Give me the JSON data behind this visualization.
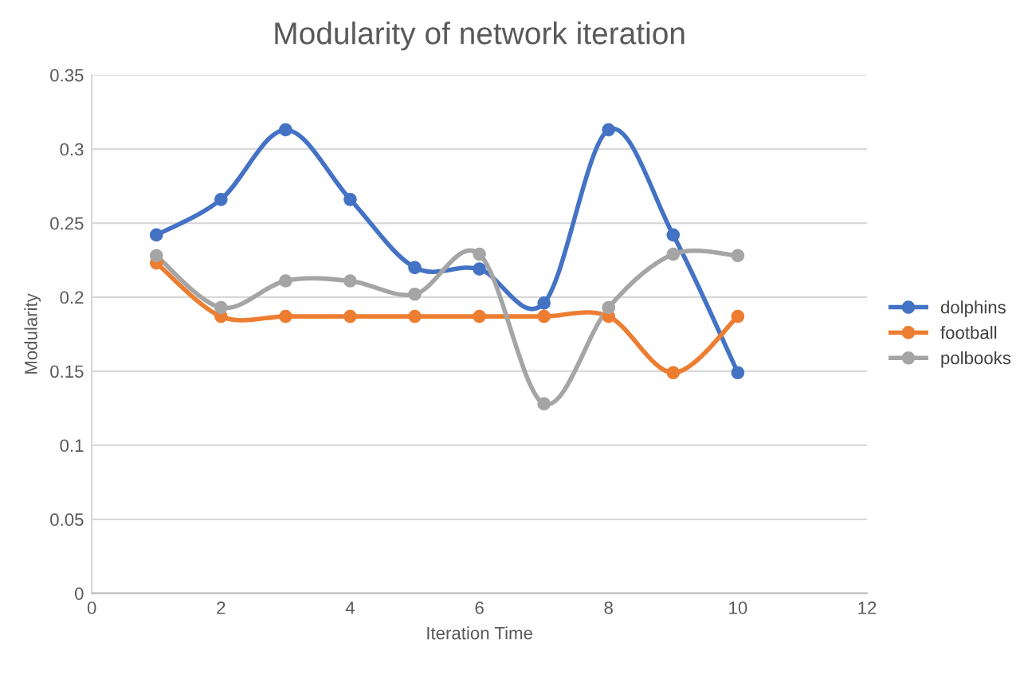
{
  "chart_data": {
    "type": "line",
    "title": "Modularity of network iteration",
    "xlabel": "Iteration Time",
    "ylabel": "Modularity",
    "x": [
      1,
      2,
      3,
      4,
      5,
      6,
      7,
      8,
      9,
      10
    ],
    "series": [
      {
        "name": "dolphins",
        "color": "#4472c4",
        "values": [
          0.242,
          0.266,
          0.313,
          0.266,
          0.22,
          0.219,
          0.196,
          0.313,
          0.242,
          0.149
        ]
      },
      {
        "name": "football",
        "color": "#ed7d31",
        "values": [
          0.223,
          0.187,
          0.187,
          0.187,
          0.187,
          0.187,
          0.187,
          0.187,
          0.149,
          0.187
        ]
      },
      {
        "name": "polbooks",
        "color": "#a5a5a5",
        "values": [
          0.228,
          0.193,
          0.211,
          0.211,
          0.202,
          0.229,
          0.128,
          0.193,
          0.229,
          0.228
        ]
      }
    ],
    "xlim": [
      0,
      12
    ],
    "xticks": [
      0,
      2,
      4,
      6,
      8,
      10,
      12
    ],
    "ylim": [
      0,
      0.35
    ],
    "yticks": [
      0,
      0.05,
      0.1,
      0.15,
      0.2,
      0.25,
      0.3,
      0.35
    ],
    "grid": "y",
    "legend": "right",
    "marker": "circle",
    "line_style": "solid"
  }
}
